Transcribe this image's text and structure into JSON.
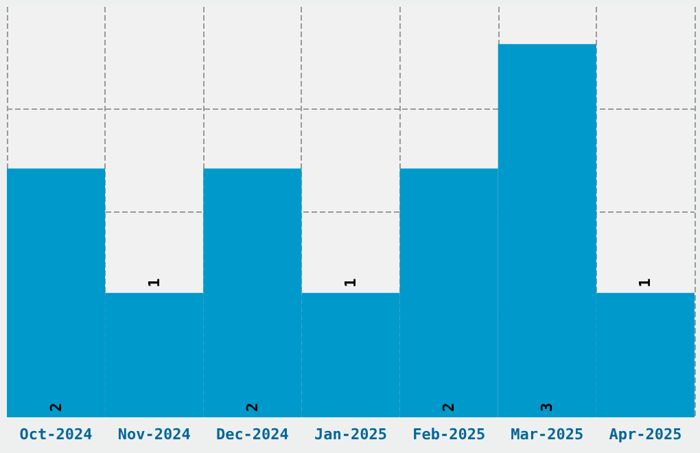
{
  "chart_data": {
    "type": "bar",
    "categories": [
      "Oct-2024",
      "Nov-2024",
      "Dec-2024",
      "Jan-2025",
      "Feb-2025",
      "Mar-2025",
      "Apr-2025"
    ],
    "values": [
      2,
      1,
      2,
      1,
      2,
      3,
      1
    ],
    "color": "#0099cc",
    "data_labels": true,
    "ylim": [
      0,
      3.3
    ],
    "yticks": [
      {
        "value": 0.825,
        "label": null
      },
      {
        "value": 1.65,
        "label": null
      },
      {
        "value": 2.475,
        "label": null
      }
    ],
    "tick_labels": "x",
    "grid": true
  }
}
